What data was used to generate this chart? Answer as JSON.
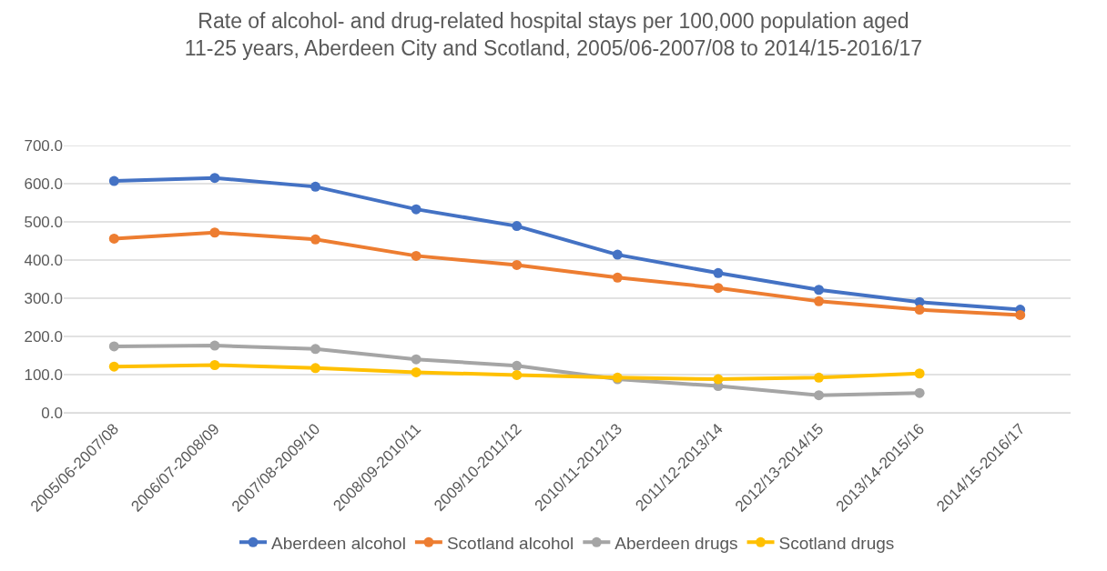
{
  "chart_data": {
    "type": "line",
    "title": "Rate of alcohol- and drug-related hospital stays per 100,000 population aged 11-25 years, Aberdeen City and Scotland, 2005/06-2007/08 to 2014/15-2016/17",
    "categories": [
      "2005/06-2007/08",
      "2006/07-2008/09",
      "2007/08-2009/10",
      "2008/09-2010/11",
      "2009/10-2011/12",
      "2010/11-2012/13",
      "2011/12-2013/14",
      "2012/13-2014/15",
      "2013/14-2015/16",
      "2014/15-2016/17"
    ],
    "series": [
      {
        "name": "Aberdeen alcohol",
        "color": "#4472c4",
        "values": [
          607,
          615,
          592,
          533,
          489,
          414,
          366,
          322,
          290,
          270
        ]
      },
      {
        "name": "Scotland alcohol",
        "color": "#ed7d31",
        "values": [
          456,
          472,
          454,
          411,
          387,
          354,
          327,
          292,
          270,
          256
        ]
      },
      {
        "name": "Aberdeen drugs",
        "color": "#a5a5a5",
        "values": [
          174,
          176,
          167,
          140,
          123,
          88,
          70,
          46,
          52,
          null
        ]
      },
      {
        "name": "Scotland drugs",
        "color": "#ffc000",
        "values": [
          121,
          125,
          117,
          106,
          99,
          92,
          88,
          92,
          103,
          null
        ]
      }
    ],
    "ylim": [
      0,
      700
    ],
    "yticks": [
      {
        "value": 0,
        "label": "0.0"
      },
      {
        "value": 100,
        "label": "100.0"
      },
      {
        "value": 200,
        "label": "200.0"
      },
      {
        "value": 300,
        "label": "300.0"
      },
      {
        "value": 400,
        "label": "400.0"
      },
      {
        "value": 500,
        "label": "500.0"
      },
      {
        "value": 600,
        "label": "600.0"
      },
      {
        "value": 700,
        "label": "700.0"
      }
    ],
    "grid": "y",
    "legend": "bottom",
    "marker": "circle",
    "line_style": "solid"
  }
}
